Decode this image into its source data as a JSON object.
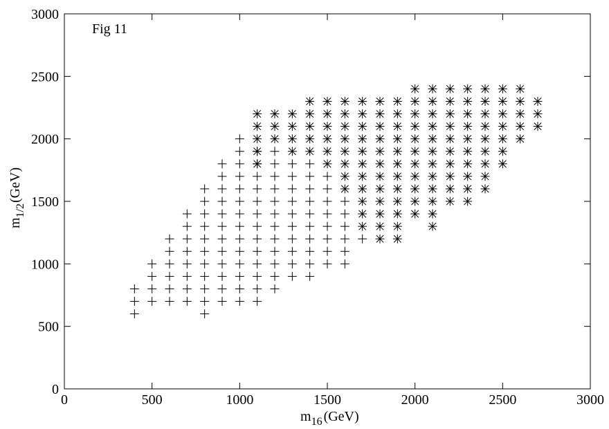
{
  "chart_data": {
    "type": "scatter",
    "title": "",
    "annotation": "Fig 11",
    "xlabel": {
      "base": "m",
      "sub": "16",
      "unit": "(GeV)"
    },
    "ylabel": {
      "base": "m",
      "sub": "1/2",
      "unit": "(GeV)"
    },
    "xlim": [
      0,
      3000
    ],
    "ylim": [
      0,
      3000
    ],
    "xticks": [
      0,
      500,
      1000,
      1500,
      2000,
      2500,
      3000
    ],
    "yticks": [
      0,
      500,
      1000,
      1500,
      2000,
      2500,
      3000
    ],
    "grid": false,
    "legend": "none",
    "series": [
      {
        "marker": "plus",
        "columns": [
          {
            "x": 400,
            "y": [
              600,
              700,
              800
            ]
          },
          {
            "x": 500,
            "y": [
              700,
              800,
              900,
              1000
            ]
          },
          {
            "x": 600,
            "y": [
              700,
              800,
              900,
              1000,
              1100,
              1200
            ]
          },
          {
            "x": 700,
            "y": [
              700,
              800,
              900,
              1000,
              1100,
              1200,
              1300,
              1400
            ]
          },
          {
            "x": 800,
            "y": [
              600,
              700,
              800,
              900,
              1000,
              1100,
              1200,
              1300,
              1400,
              1500,
              1600
            ]
          },
          {
            "x": 900,
            "y": [
              700,
              800,
              900,
              1000,
              1100,
              1200,
              1300,
              1400,
              1500,
              1600,
              1700,
              1800
            ]
          },
          {
            "x": 1000,
            "y": [
              700,
              800,
              900,
              1000,
              1100,
              1200,
              1300,
              1400,
              1500,
              1600,
              1700,
              1800,
              1900,
              2000
            ]
          },
          {
            "x": 1100,
            "y": [
              700,
              800,
              900,
              1000,
              1100,
              1200,
              1300,
              1400,
              1500,
              1600,
              1700,
              1800,
              1900
            ]
          },
          {
            "x": 1200,
            "y": [
              800,
              900,
              1000,
              1100,
              1200,
              1300,
              1400,
              1500,
              1600,
              1700,
              1800,
              1900
            ]
          },
          {
            "x": 1300,
            "y": [
              900,
              1000,
              1100,
              1200,
              1300,
              1400,
              1500,
              1600,
              1700,
              1800
            ]
          },
          {
            "x": 1400,
            "y": [
              900,
              1000,
              1100,
              1200,
              1300,
              1400,
              1500,
              1600,
              1700,
              1800
            ]
          },
          {
            "x": 1500,
            "y": [
              1000,
              1100,
              1200,
              1300,
              1400,
              1500,
              1600,
              1700
            ]
          },
          {
            "x": 1600,
            "y": [
              1000,
              1100,
              1200,
              1300,
              1400,
              1500
            ]
          },
          {
            "x": 1700,
            "y": [
              1200
            ]
          }
        ]
      },
      {
        "marker": "asterisk",
        "columns": [
          {
            "x": 1100,
            "y": [
              1800,
              1900,
              2000,
              2100,
              2200
            ]
          },
          {
            "x": 1200,
            "y": [
              2000,
              2100,
              2200
            ]
          },
          {
            "x": 1300,
            "y": [
              1900,
              2000,
              2100,
              2200
            ]
          },
          {
            "x": 1400,
            "y": [
              1900,
              2000,
              2100,
              2200,
              2300
            ]
          },
          {
            "x": 1500,
            "y": [
              1800,
              1900,
              2000,
              2100,
              2200,
              2300
            ]
          },
          {
            "x": 1600,
            "y": [
              1600,
              1700,
              1800,
              1900,
              2000,
              2100,
              2200,
              2300
            ]
          },
          {
            "x": 1700,
            "y": [
              1300,
              1400,
              1500,
              1600,
              1700,
              1800,
              1900,
              2000,
              2100,
              2200,
              2300
            ]
          },
          {
            "x": 1800,
            "y": [
              1200,
              1300,
              1400,
              1500,
              1600,
              1700,
              1800,
              1900,
              2000,
              2100,
              2200,
              2300
            ]
          },
          {
            "x": 1900,
            "y": [
              1200,
              1300,
              1400,
              1500,
              1600,
              1700,
              1800,
              1900,
              2000,
              2100,
              2200,
              2300
            ]
          },
          {
            "x": 2000,
            "y": [
              1400,
              1500,
              1600,
              1700,
              1800,
              1900,
              2000,
              2100,
              2200,
              2300,
              2400
            ]
          },
          {
            "x": 2100,
            "y": [
              1300,
              1400,
              1500,
              1600,
              1700,
              1800,
              1900,
              2000,
              2100,
              2200,
              2300,
              2400
            ]
          },
          {
            "x": 2200,
            "y": [
              1500,
              1600,
              1700,
              1800,
              1900,
              2000,
              2100,
              2200,
              2300,
              2400
            ]
          },
          {
            "x": 2300,
            "y": [
              1500,
              1600,
              1700,
              1800,
              1900,
              2000,
              2100,
              2200,
              2300,
              2400
            ]
          },
          {
            "x": 2400,
            "y": [
              1600,
              1700,
              1800,
              1900,
              2000,
              2100,
              2200,
              2300,
              2400
            ]
          },
          {
            "x": 2500,
            "y": [
              1800,
              1900,
              2000,
              2100,
              2200,
              2300,
              2400
            ]
          },
          {
            "x": 2600,
            "y": [
              2000,
              2100,
              2200,
              2300,
              2400
            ]
          },
          {
            "x": 2700,
            "y": [
              2100,
              2200,
              2300
            ]
          }
        ]
      }
    ]
  }
}
